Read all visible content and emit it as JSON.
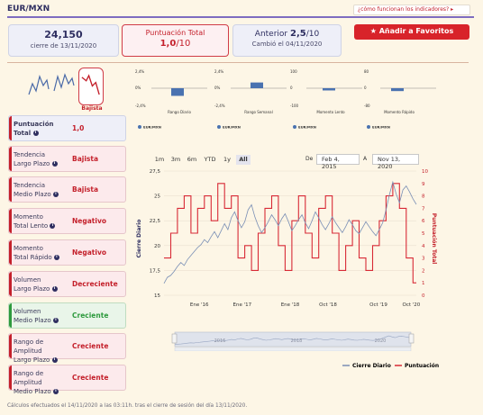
{
  "header": {
    "title": "EUR/MXN",
    "help_link": "¿cómo funcionan los indicadores? ▸"
  },
  "top": {
    "close_value": "24,150",
    "close_label": "cierre de 13/11/2020",
    "score_label": "Puntuación Total",
    "score_value": "1,0",
    "score_max": "/10",
    "prev_label": "Anterior",
    "prev_value": "2,5",
    "prev_max": "/10",
    "prev_change": "Cambió el 04/11/2020",
    "fav_button": "Añadir a Favoritos"
  },
  "gauge": {
    "label": "Bajista"
  },
  "mini_charts": [
    {
      "title": "Rango Diario",
      "y_top": "2,4%",
      "y_mid": "0%",
      "y_bot": "-2,4%",
      "value": -1.2,
      "legend": "EUR/MXN"
    },
    {
      "title": "Rango Semanal",
      "y_top": "2,4%",
      "y_mid": "0%",
      "y_bot": "-2,4%",
      "value": 0.9,
      "legend": "EUR/MXN"
    },
    {
      "title": "Momento Lento",
      "y_top": "100",
      "y_mid": "0",
      "y_bot": "-100",
      "value": -0.35,
      "legend": "EUR/MXN"
    },
    {
      "title": "Momento Rápido",
      "y_top": "80",
      "y_mid": "0",
      "y_bot": "-80",
      "value": -0.45,
      "legend": "EUR/MXN"
    }
  ],
  "indicators": [
    {
      "line1": "Puntuación",
      "line2": "Total",
      "value": "1,0",
      "state": "total"
    },
    {
      "line1": "Tendencia",
      "line2": "Largo Plazo",
      "value": "Bajista",
      "state": "neg"
    },
    {
      "line1": "Tendencia",
      "line2": "Medio Plazo",
      "value": "Bajista",
      "state": "neg"
    },
    {
      "line1": "Momento",
      "line2": "Total Lento",
      "value": "Negativo",
      "state": "neg"
    },
    {
      "line1": "Momento",
      "line2": "Total Rápido",
      "value": "Negativo",
      "state": "neg"
    },
    {
      "line1": "Volumen",
      "line2": "Largo Plazo",
      "value": "Decreciente",
      "state": "neg"
    },
    {
      "line1": "Volumen",
      "line2": "Medio Plazo",
      "value": "Creciente",
      "state": "pos"
    },
    {
      "line1": "Rango de Amplitud",
      "line2": "Largo Plazo",
      "value": "Creciente",
      "state": "neg"
    },
    {
      "line1": "Rango de Amplitud",
      "line2": "Medio Plazo",
      "value": "Creciente",
      "state": "neg"
    }
  ],
  "range": {
    "buttons": [
      "1m",
      "3m",
      "6m",
      "YTD",
      "1y",
      "All"
    ],
    "de_label": "De",
    "from_date": "Feb 4, 2015",
    "a_label": "A",
    "to_date": "Nov 13, 2020"
  },
  "navigator": {
    "labels": [
      "2016",
      "2018",
      "2020"
    ]
  },
  "chart_data": {
    "type": "line",
    "ylabel_left": "Cierre Diario",
    "ylabel_right": "Puntuación Total",
    "yticks_left": [
      "27,5",
      "25",
      "22,5",
      "20",
      "17,5",
      "15"
    ],
    "yticks_right": [
      "10",
      "9",
      "8",
      "7",
      "6",
      "5",
      "4",
      "3",
      "2",
      "1",
      "0"
    ],
    "xticks": [
      "Ene '16",
      "Ene '17",
      "Ene '18",
      "Oct '18",
      "Oct '19",
      "Oct '20"
    ],
    "ylim_left": [
      15,
      27.5
    ],
    "ylim_right": [
      0,
      10
    ],
    "series": [
      {
        "name": "Cierre Diario",
        "color": "#7a8fb5",
        "values": [
          16.2,
          16.8,
          17.0,
          17.4,
          17.9,
          18.3,
          18.0,
          18.6,
          19.0,
          19.4,
          19.8,
          20.1,
          20.6,
          20.3,
          20.9,
          21.4,
          20.8,
          21.5,
          22.2,
          21.6,
          22.8,
          23.4,
          22.5,
          21.8,
          22.4,
          23.6,
          24.1,
          22.9,
          22.0,
          21.3,
          21.8,
          22.4,
          23.1,
          22.6,
          22.0,
          22.7,
          23.2,
          22.4,
          21.5,
          22.0,
          22.6,
          23.1,
          22.3,
          21.7,
          22.5,
          23.4,
          22.8,
          22.1,
          21.6,
          22.2,
          22.9,
          22.3,
          21.8,
          21.3,
          21.9,
          22.6,
          22.1,
          21.5,
          21.2,
          21.8,
          22.4,
          21.9,
          21.4,
          21.0,
          21.6,
          22.3,
          23.6,
          25.1,
          26.4,
          25.2,
          24.3,
          25.6,
          26.0,
          25.4,
          24.7,
          24.15
        ]
      },
      {
        "name": "Puntuación",
        "color": "#d82a36",
        "values": [
          3,
          3,
          5,
          5,
          7,
          7,
          8,
          8,
          5,
          5,
          7,
          7,
          8,
          8,
          6,
          6,
          9,
          9,
          7,
          7,
          8,
          8,
          3,
          3,
          4,
          4,
          2,
          2,
          5,
          5,
          7,
          7,
          8,
          8,
          4,
          4,
          2,
          2,
          6,
          6,
          8,
          8,
          5,
          5,
          3,
          3,
          7,
          7,
          8,
          8,
          5,
          5,
          2,
          2,
          4,
          4,
          6,
          6,
          3,
          3,
          2,
          2,
          4,
          4,
          6,
          6,
          8,
          8,
          9,
          9,
          7,
          7,
          3,
          3,
          1,
          1
        ]
      }
    ],
    "legend_position": "bottom-right"
  },
  "footer": {
    "note": "Cálculos efectuados el 14/11/2020 a las 03:11h. tras el cierre de sesión del día 13/11/2020."
  }
}
